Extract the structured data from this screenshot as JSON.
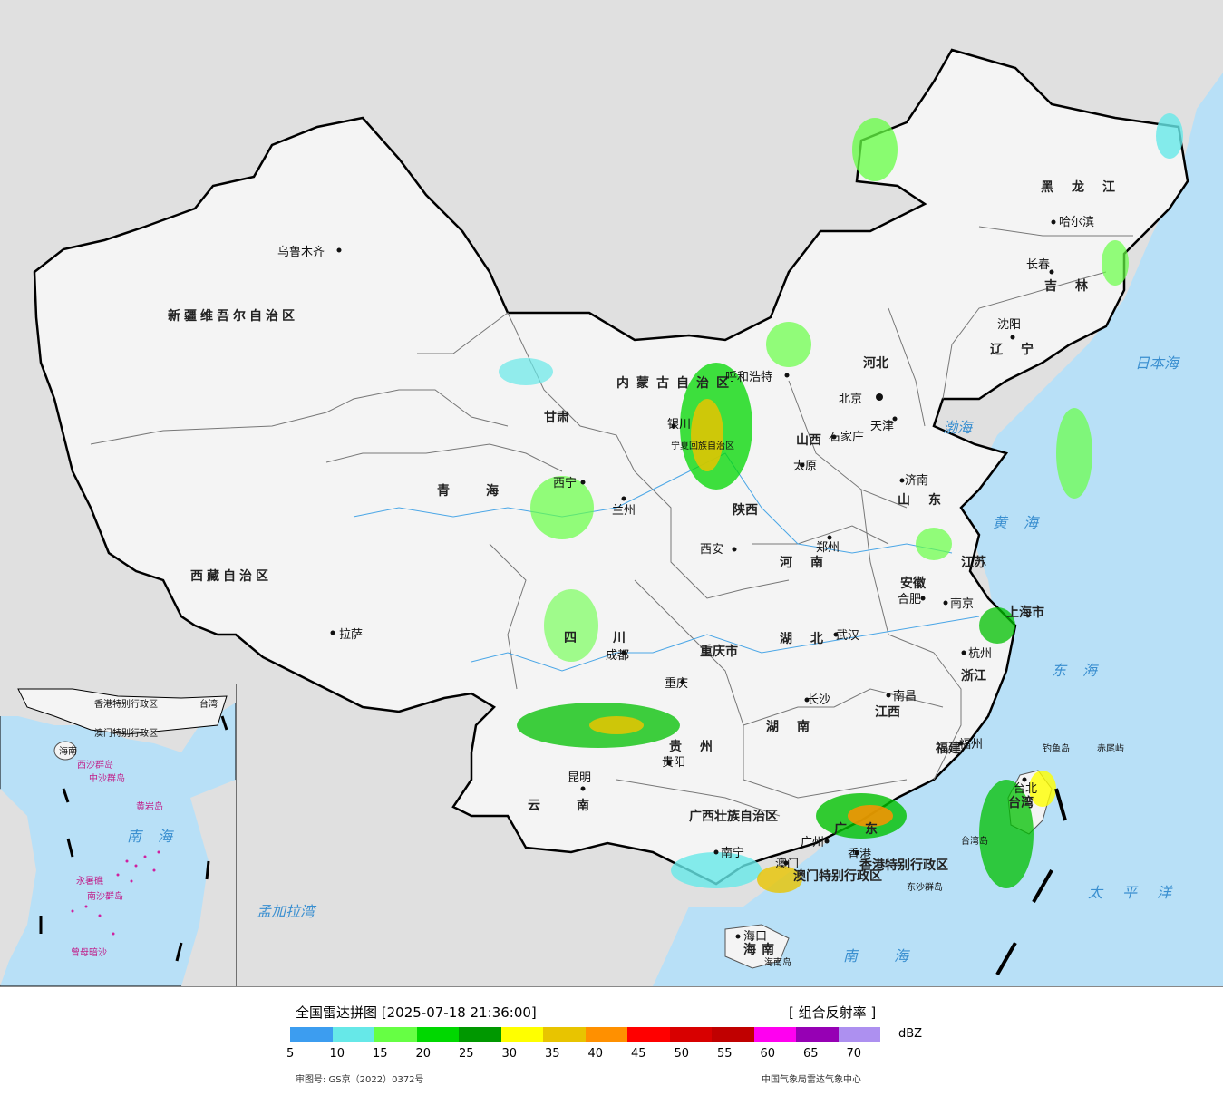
{
  "map": {
    "provinces": [
      {
        "name": "新疆维吾尔自治区"
      },
      {
        "name": "西藏自治区"
      },
      {
        "name": "青海"
      },
      {
        "name": "甘肃"
      },
      {
        "name": "四川"
      },
      {
        "name": "云南"
      },
      {
        "name": "内蒙古自治区"
      },
      {
        "name": "黑龙江"
      },
      {
        "name": "吉林"
      },
      {
        "name": "辽宁"
      },
      {
        "name": "河北"
      },
      {
        "name": "山西"
      },
      {
        "name": "山东"
      },
      {
        "name": "河南"
      },
      {
        "name": "陕西"
      },
      {
        "name": "宁夏回族自治区"
      },
      {
        "name": "江苏"
      },
      {
        "name": "安徽"
      },
      {
        "name": "湖北"
      },
      {
        "name": "重庆市"
      },
      {
        "name": "贵州"
      },
      {
        "name": "湖南"
      },
      {
        "name": "江西"
      },
      {
        "name": "浙江"
      },
      {
        "name": "福建"
      },
      {
        "name": "广东"
      },
      {
        "name": "广西壮族自治区"
      },
      {
        "name": "海南"
      },
      {
        "name": "台湾"
      },
      {
        "name": "上海市"
      },
      {
        "name": "香港特别行政区"
      },
      {
        "name": "澳门特别行政区"
      }
    ],
    "cities": [
      "乌鲁木齐",
      "拉萨",
      "西宁",
      "兰州",
      "银川",
      "呼和浩特",
      "北京",
      "天津",
      "石家庄",
      "太原",
      "济南",
      "郑州",
      "西安",
      "成都",
      "重庆",
      "贵阳",
      "昆明",
      "南宁",
      "广州",
      "香港",
      "澳门",
      "海口",
      "长沙",
      "武汉",
      "南昌",
      "合肥",
      "南京",
      "杭州",
      "福州",
      "台北",
      "沈阳",
      "长春",
      "哈尔滨"
    ],
    "seas": [
      "渤海",
      "黄海",
      "东海",
      "南海",
      "日本海",
      "太平洋",
      "孟加拉湾"
    ],
    "islands": [
      "钓鱼岛",
      "赤尾屿",
      "东沙群岛",
      "台湾岛",
      "海南岛"
    ],
    "inset": {
      "sea": "南海",
      "labels": [
        "海南",
        "中沙群岛",
        "黄岩岛",
        "永暑礁",
        "南沙群岛",
        "曾母暗沙",
        "西沙群岛",
        "香港特别行政区",
        "澳门特别行政区",
        "台湾"
      ]
    }
  },
  "legend": {
    "title": "全国雷达拼图 [2025-07-18 21:36:00]",
    "product": "[ 组合反射率 ]",
    "unit": "dBZ",
    "colors": [
      "#3c9df0",
      "#66e8e8",
      "#66ff44",
      "#00d800",
      "#009800",
      "#ffff00",
      "#e8c400",
      "#ff9000",
      "#ff0000",
      "#d80000",
      "#c00000",
      "#ff00f0",
      "#9600b4",
      "#ad90f0"
    ],
    "ticks": [
      "5",
      "10",
      "15",
      "20",
      "25",
      "30",
      "35",
      "40",
      "45",
      "50",
      "55",
      "60",
      "65",
      "70"
    ],
    "approval": "审图号: GS京（2022）0372号",
    "agency": "中国气象局雷达气象中心"
  }
}
